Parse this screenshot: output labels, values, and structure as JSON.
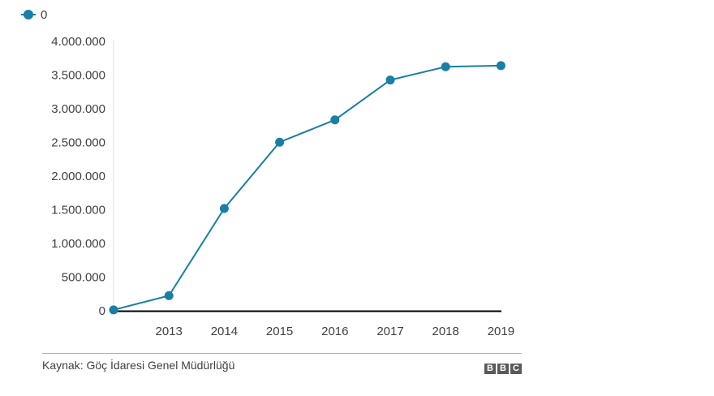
{
  "chart_data": {
    "type": "line",
    "x": [
      "2012",
      "2013",
      "2014",
      "2015",
      "2016",
      "2017",
      "2018",
      "2019"
    ],
    "x_tick_labels": [
      "2013",
      "2014",
      "2015",
      "2016",
      "2017",
      "2018",
      "2019"
    ],
    "series": [
      {
        "name": "0",
        "values": [
          14000,
          224655,
          1519286,
          2503549,
          2834441,
          3426786,
          3623192,
          3640000
        ]
      }
    ],
    "y_tick_labels": [
      "0",
      "500.000",
      "1.000.000",
      "1.500.000",
      "2.000.000",
      "2.500.000",
      "3.000.000",
      "3.500.000",
      "4.000.000"
    ],
    "ylim": [
      0,
      4000000
    ],
    "grid": false,
    "legend_position": "top-left",
    "series_color": "#1a7ea5"
  },
  "footer": {
    "source": "Kaynak: Göç İdaresi Genel Müdürlüğü",
    "logo_letters": [
      "B",
      "B",
      "C"
    ]
  }
}
